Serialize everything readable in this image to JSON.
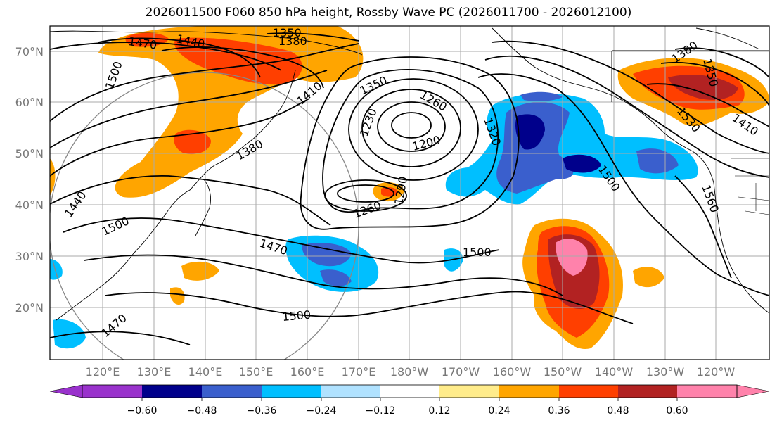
{
  "title": "2026011500 F060 850 hPa height, Rossby Wave PC (2026011700 - 2026012100)",
  "latitude_labels": [
    "70°N",
    "60°N",
    "50°N",
    "40°N",
    "30°N",
    "20°N"
  ],
  "longitude_labels": [
    "120°E",
    "130°E",
    "140°E",
    "150°E",
    "160°E",
    "170°E",
    "180°W",
    "170°W",
    "160°W",
    "150°W",
    "140°W",
    "130°W",
    "120°W"
  ],
  "contour_labels": [
    "1350",
    "1380",
    "1440",
    "1470",
    "1500",
    "1410",
    "1350",
    "1260",
    "1230",
    "1200",
    "1320",
    "1380",
    "1260",
    "1290",
    "1440",
    "1500",
    "1470",
    "1500",
    "1500",
    "1470",
    "1380",
    "1350",
    "1410",
    "1530",
    "1500",
    "1560"
  ],
  "colorbar": {
    "ticks": [
      "−0.60",
      "−0.48",
      "−0.36",
      "−0.24",
      "−0.12",
      "0.12",
      "0.24",
      "0.36",
      "0.48",
      "0.60"
    ],
    "colors": [
      "#9932CC",
      "#00008B",
      "#3A5FCD",
      "#00BFFF",
      "#B0E2FF",
      "#FFFFFF",
      "#FFEC8B",
      "#FFA500",
      "#FF3F00",
      "#B22222",
      "#FF82AB"
    ]
  }
}
